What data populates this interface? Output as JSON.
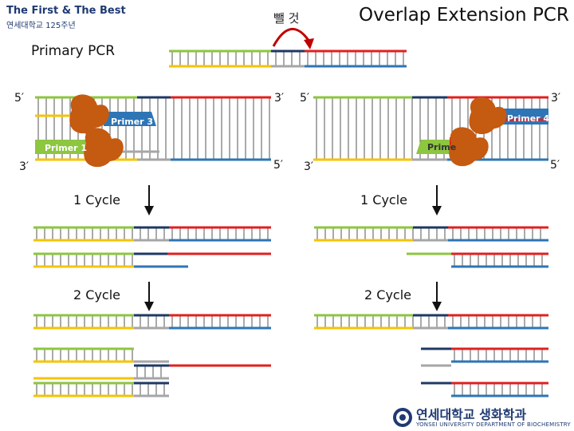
{
  "header": {
    "title": "Overlap Extension PCR",
    "remove_label": "뺄 것",
    "section_label": "Primary PCR"
  },
  "logo_top": {
    "line1": "The First & The Best",
    "line2": "연세대학교 125주년"
  },
  "logo_bottom": {
    "korean": "연세대학교 생화학과",
    "english": "YONSEI UNIVERSITY DEPARTMENT OF BIOCHEMISTRY"
  },
  "primers": {
    "p1": "Primer 1",
    "p2": "Prime",
    "p3": "Primer 3",
    "p4": "Primer 4"
  },
  "ends": {
    "five": "5′",
    "three": "3′"
  },
  "cycles": {
    "c1": "1 Cycle",
    "c2": "2 Cycle"
  },
  "colors": {
    "green": "#8dc63f",
    "navy": "#1f3864",
    "red": "#e02020",
    "yellow": "#f5c400",
    "gray": "#a6a6a6",
    "blue": "#2e75b6",
    "enzyme": "#c55a11"
  },
  "icons": {
    "enzyme": "polymerase-blob-icon",
    "arrow_down": "arrow-down-icon",
    "arrow_curve": "curved-arrow-icon"
  }
}
